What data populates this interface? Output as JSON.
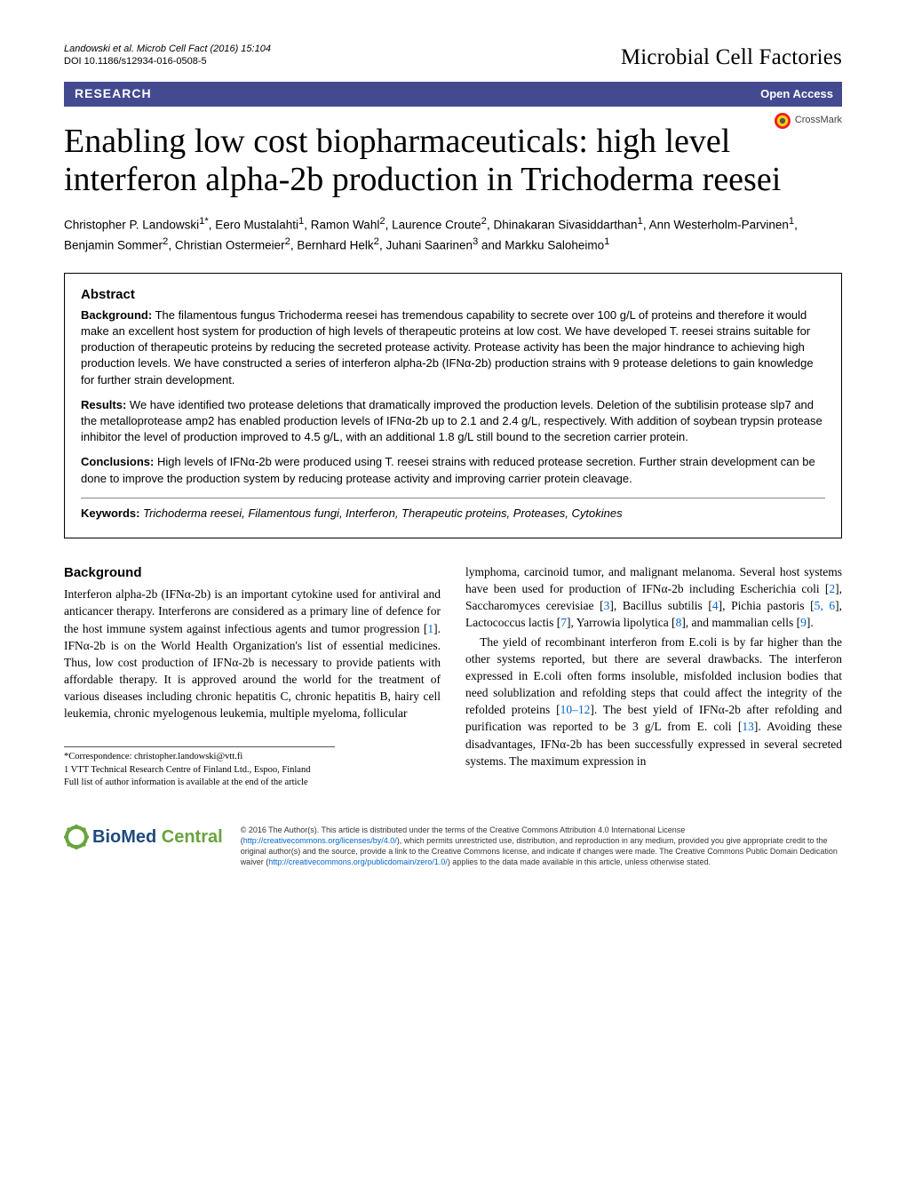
{
  "header": {
    "citation_line1": "Landowski et al. Microb Cell Fact (2016) 15:104",
    "citation_line2": "DOI 10.1186/s12934-016-0508-5",
    "journal": "Microbial Cell Factories"
  },
  "bar": {
    "left": "RESEARCH",
    "right": "Open Access",
    "bg_color": "#434a8f",
    "text_color": "#ffffff"
  },
  "crossmark": {
    "label": "CrossMark",
    "icon_color_outer": "#ff0000",
    "icon_color_mid": "#ffd400",
    "icon_color_center": "#444444"
  },
  "title": "Enabling low cost biopharmaceuticals: high level interferon alpha-2b production in Trichoderma reesei",
  "title_fontsize": 38,
  "authors_html": "Christopher P. Landowski<sup>1*</sup>, Eero Mustalahti<sup>1</sup>, Ramon Wahl<sup>2</sup>, Laurence Croute<sup>2</sup>, Dhinakaran Sivasiddarthan<sup>1</sup>, Ann Westerholm-Parvinen<sup>1</sup>, Benjamin Sommer<sup>2</sup>, Christian Ostermeier<sup>2</sup>, Bernhard Helk<sup>2</sup>, Juhani Saarinen<sup>3</sup> and Markku Saloheimo<sup>1</sup>",
  "abstract": {
    "heading": "Abstract",
    "background_label": "Background:",
    "background_text": "The filamentous fungus Trichoderma reesei has tremendous capability to secrete over 100 g/L of proteins and therefore it would make an excellent host system for production of high levels of therapeutic proteins at low cost. We have developed T. reesei strains suitable for production of therapeutic proteins by reducing the secreted protease activity. Protease activity has been the major hindrance to achieving high production levels. We have constructed a series of interferon alpha-2b (IFNα-2b) production strains with 9 protease deletions to gain knowledge for further strain development.",
    "results_label": "Results:",
    "results_text": "We have identified two protease deletions that dramatically improved the production levels. Deletion of the subtilisin protease slp7 and the metalloprotease amp2 has enabled production levels of IFNα-2b up to 2.1 and 2.4 g/L, respectively. With addition of soybean trypsin protease inhibitor the level of production improved to 4.5 g/L, with an additional 1.8 g/L still bound to the secretion carrier protein.",
    "conclusions_label": "Conclusions:",
    "conclusions_text": "High levels of IFNα-2b were produced using T. reesei strains with reduced protease secretion. Further strain development can be done to improve the production system by reducing protease activity and improving carrier protein cleavage.",
    "keywords_label": "Keywords:",
    "keywords_text": "Trichoderma reesei, Filamentous fungi, Interferon, Therapeutic proteins, Proteases, Cytokines"
  },
  "body": {
    "bg_heading": "Background",
    "left_col": "Interferon alpha-2b (IFNα-2b) is an important cytokine used for antiviral and anticancer therapy. Interferons are considered as a primary line of defence for the host immune system against infectious agents and tumor progression [1]. IFNα-2b is on the World Health Organization's list of essential medicines. Thus, low cost production of IFNα-2b is necessary to provide patients with affordable therapy. It is approved around the world for the treatment of various diseases including chronic hepatitis C, chronic hepatitis B, hairy cell leukemia, chronic myelogenous leukemia, multiple myeloma, follicular",
    "right_col_p1": "lymphoma, carcinoid tumor, and malignant melanoma. Several host systems have been used for production of IFNα-2b including Escherichia coli [2], Saccharomyces cerevisiae [3], Bacillus subtilis [4], Pichia pastoris [5, 6], Lactococcus lactis [7], Yarrowia lipolytica [8], and mammalian cells [9].",
    "right_col_p2": "The yield of recombinant interferon from E.coli is by far higher than the other systems reported, but there are several drawbacks. The interferon expressed in E.coli often forms insoluble, misfolded inclusion bodies that need solublization and refolding steps that could affect the integrity of the refolded proteins [10–12]. The best yield of IFNα-2b after refolding and purification was reported to be 3 g/L from E. coli [13]. Avoiding these disadvantages, IFNα-2b has been successfully expressed in several secreted systems. The maximum expression in",
    "cite_refs": [
      "1",
      "2",
      "3",
      "4",
      "5",
      "6",
      "7",
      "8",
      "9",
      "10–12",
      "13"
    ]
  },
  "correspondence": {
    "line1": "*Correspondence: christopher.landowski@vtt.fi",
    "line2": "1 VTT Technical Research Centre of Finland Ltd., Espoo, Finland",
    "line3": "Full list of author information is available at the end of the article"
  },
  "footer": {
    "logo_text_bio": "BioMed",
    "logo_text_central": " Central",
    "logo_cog_color": "#69a33e",
    "license": "© 2016 The Author(s). This article is distributed under the terms of the Creative Commons Attribution 4.0 International License (http://creativecommons.org/licenses/by/4.0/), which permits unrestricted use, distribution, and reproduction in any medium, provided you give appropriate credit to the original author(s) and the source, provide a link to the Creative Commons license, and indicate if changes were made. The Creative Commons Public Domain Dedication waiver (http://creativecommons.org/publicdomain/zero/1.0/) applies to the data made available in this article, unless otherwise stated.",
    "license_link1": "http://creativecommons.org/licenses/by/4.0/",
    "license_link2": "http://creativecommons.org/publicdomain/zero/1.0/"
  },
  "colors": {
    "link": "#0066cc",
    "bar_bg": "#434a8f"
  }
}
